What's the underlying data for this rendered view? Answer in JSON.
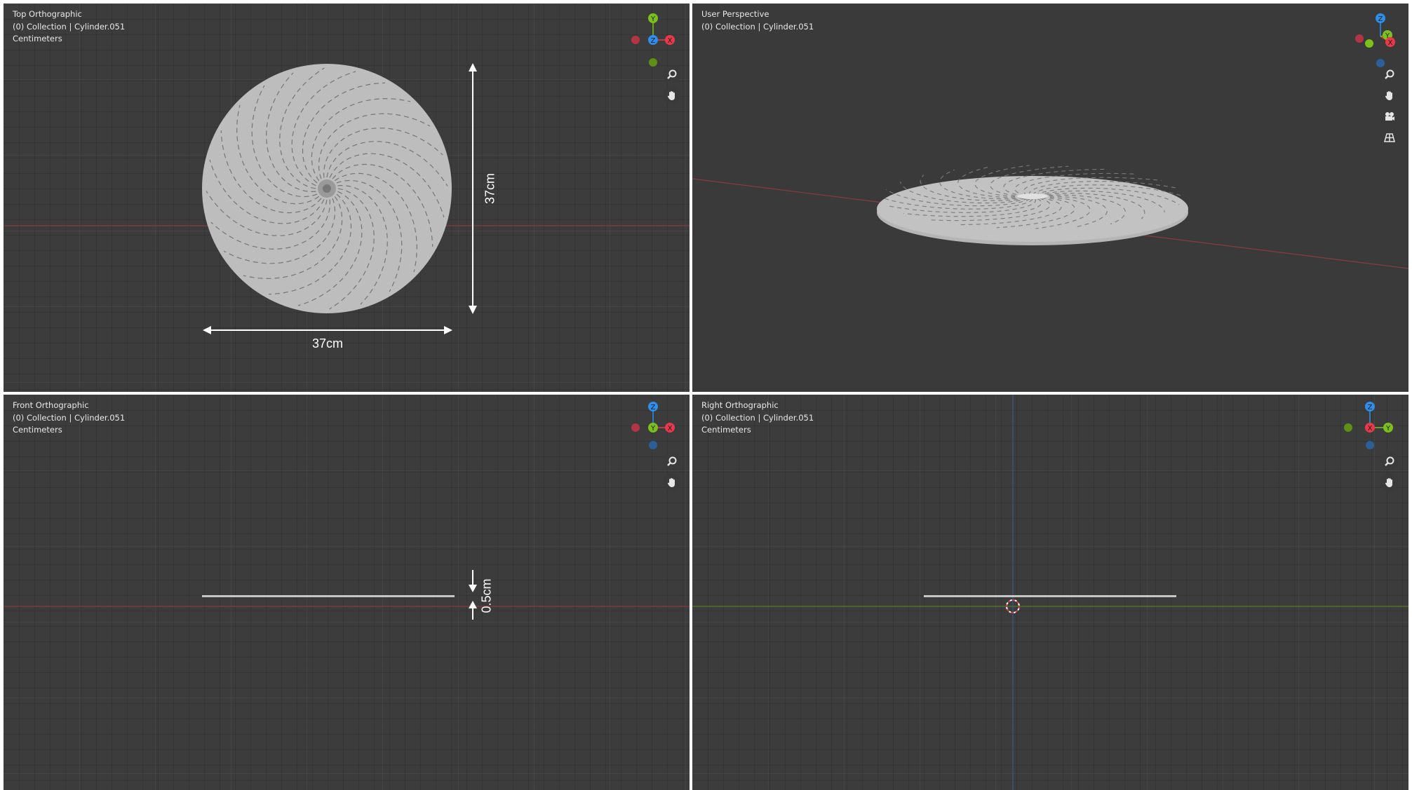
{
  "viewports": {
    "top": {
      "view": "Top Orthographic",
      "collection": "(0) Collection | Cylinder.051",
      "units": "Centimeters"
    },
    "persp": {
      "view": "User Perspective",
      "collection": "(0) Collection | Cylinder.051"
    },
    "front": {
      "view": "Front Orthographic",
      "collection": "(0) Collection | Cylinder.051",
      "units": "Centimeters"
    },
    "right": {
      "view": "Right Orthographic",
      "collection": "(0) Collection | Cylinder.051",
      "units": "Centimeters"
    }
  },
  "gizmo_labels": {
    "x": "X",
    "y": "Y",
    "z": "Z"
  },
  "axis_colors": {
    "x": "#e8394b",
    "y": "#7cc11a",
    "z": "#2e8eeb"
  },
  "dimensions": {
    "width": "37cm",
    "height": "37cm",
    "thickness": "0.5cm"
  },
  "icons": [
    "zoom-icon",
    "hand-pan-icon",
    "camera-icon",
    "grid-icon"
  ]
}
